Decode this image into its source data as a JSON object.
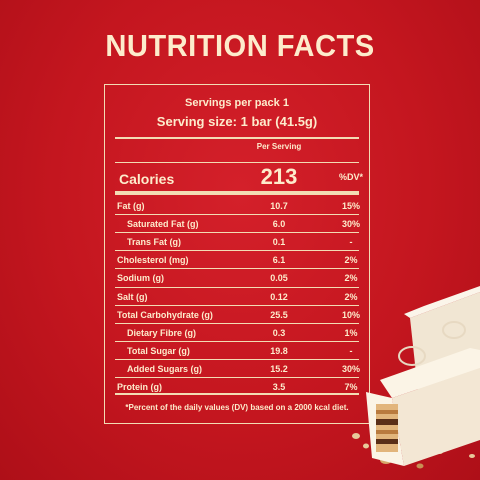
{
  "title": "NUTRITION FACTS",
  "servings_per_pack": "Servings per pack 1",
  "serving_size": "Serving size: 1 bar (41.5g)",
  "column_header": "Per Serving",
  "calories": {
    "label": "Calories",
    "value": "213",
    "dv_header": "%DV*"
  },
  "nutrients": [
    {
      "name": "Fat (g)",
      "value": "10.7",
      "dv": "15%",
      "indent": false
    },
    {
      "name": "Saturated Fat (g)",
      "value": "6.0",
      "dv": "30%",
      "indent": true
    },
    {
      "name": "Trans Fat (g)",
      "value": "0.1",
      "dv": "-",
      "indent": true
    },
    {
      "name": "Cholesterol (mg)",
      "value": "6.1",
      "dv": "2%",
      "indent": false
    },
    {
      "name": "Sodium (g)",
      "value": "0.05",
      "dv": "2%",
      "indent": false
    },
    {
      "name": "Salt (g)",
      "value": "0.12",
      "dv": "2%",
      "indent": false
    },
    {
      "name": "Total Carbohydrate (g)",
      "value": "25.5",
      "dv": "10%",
      "indent": false
    },
    {
      "name": "Dietary Fibre (g)",
      "value": "0.3",
      "dv": "1%",
      "indent": true
    },
    {
      "name": "Total Sugar (g)",
      "value": "19.8",
      "dv": "-",
      "indent": true
    },
    {
      "name": "Added Sugars (g)",
      "value": "15.2",
      "dv": "30%",
      "indent": true
    },
    {
      "name": "Protein (g)",
      "value": "3.5",
      "dv": "7%",
      "indent": false
    }
  ],
  "footnote": "*Percent of the daily values (DV) based on a 2000 kcal diet.",
  "colors": {
    "background": "#c4161f",
    "text": "#fdeccc",
    "rule": "#f3dcb4",
    "chocolate": "#fbf4e6"
  }
}
